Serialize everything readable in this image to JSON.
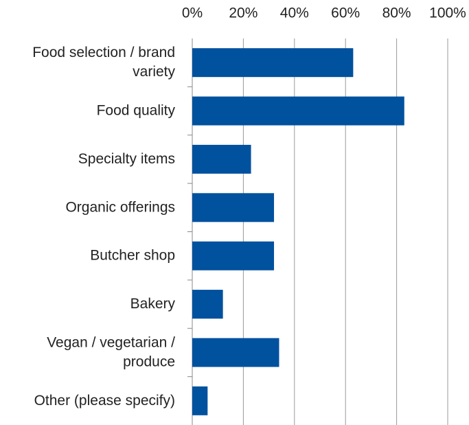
{
  "chart_data": {
    "type": "barh",
    "categories": [
      "Food selection / brand variety",
      "Food quality",
      "Specialty items",
      "Organic offerings",
      "Butcher shop",
      "Bakery",
      "Vegan / vegetarian / produce",
      "Other (please specify)"
    ],
    "values": [
      63,
      83,
      23,
      32,
      32,
      12,
      34,
      6
    ],
    "color": "#00519e",
    "xlim": [
      0,
      100
    ],
    "xticks": [
      {
        "value": 0,
        "label": "0%"
      },
      {
        "value": 20,
        "label": "20%"
      },
      {
        "value": 40,
        "label": "40%"
      },
      {
        "value": 60,
        "label": "60%"
      },
      {
        "value": 80,
        "label": "80%"
      },
      {
        "value": 100,
        "label": "100%"
      }
    ],
    "grid": true
  }
}
